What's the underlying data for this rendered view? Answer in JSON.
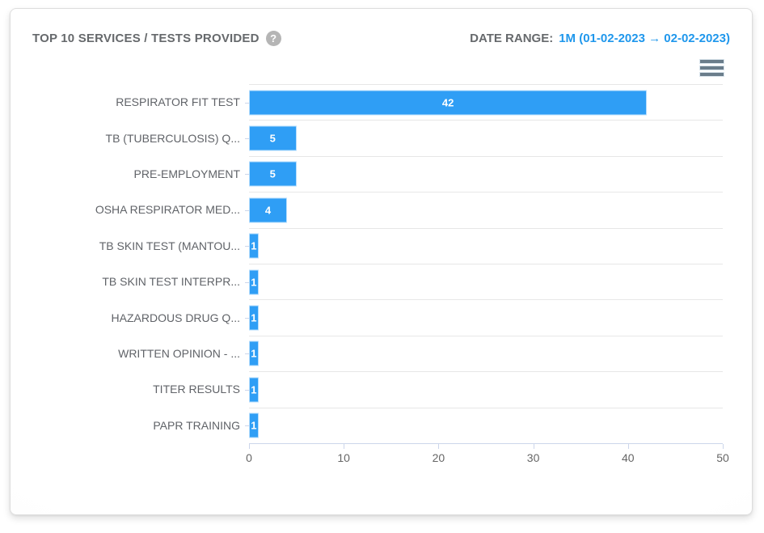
{
  "header": {
    "title": "TOP 10 SERVICES / TESTS PROVIDED",
    "help_glyph": "?",
    "date_range_label": "DATE RANGE:",
    "date_range_value": "1M (01-02-2023 → 02-02-2023)"
  },
  "menu": {
    "icon": "hamburger-icon"
  },
  "colors": {
    "bar": "#2f9ef5",
    "date_range_blue": "#1f97ec",
    "title_gray": "#66696c",
    "axis_label_gray": "#666666",
    "grid_line": "#e7e7e7",
    "axis_line": "#ccd6eb"
  },
  "chart_data": {
    "type": "bar",
    "orientation": "horizontal",
    "title": "TOP 10 SERVICES / TESTS PROVIDED",
    "categories": [
      "RESPIRATOR FIT TEST",
      "TB (TUBERCULOSIS) Q...",
      "PRE-EMPLOYMENT",
      "OSHA RESPIRATOR MED...",
      "TB SKIN TEST (MANTOU...",
      "TB SKIN TEST INTERPR...",
      "HAZARDOUS DRUG Q...",
      "WRITTEN OPINION - ...",
      "TITER RESULTS",
      "PAPR TRAINING"
    ],
    "values": [
      42,
      5,
      5,
      4,
      1,
      1,
      1,
      1,
      1,
      1
    ],
    "data_labels": true,
    "xlabel": "",
    "ylabel": "",
    "value_axis_ticks": [
      0,
      10,
      20,
      30,
      40,
      50
    ],
    "value_axis_range": [
      0,
      50
    ],
    "grid": "category-separator-lines-only",
    "legend": "none"
  }
}
